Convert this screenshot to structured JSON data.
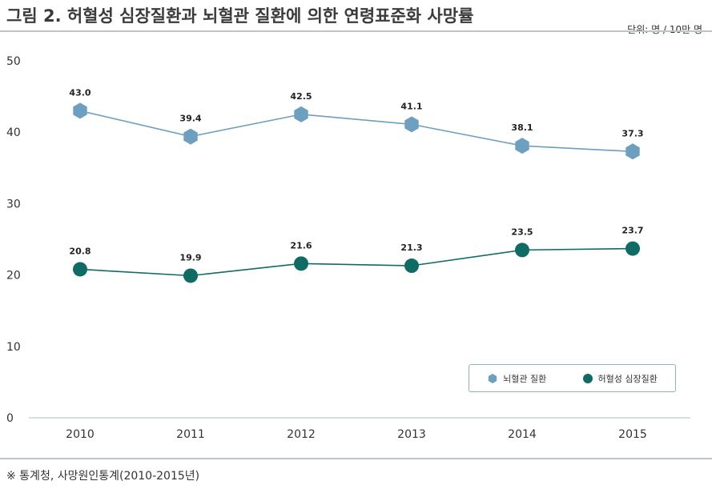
{
  "title": "그림 2. 허혈성 심장질환과 뇌혈관 질환에 의한 연령표준화 사망률",
  "unit": "단위: 명 / 10만 명",
  "source": "※ 통계청, 사망원인통계(2010-2015년)",
  "colors": {
    "cerebro": "#6d9fc0",
    "ischemic": "#0f6b64",
    "grid": "#c7d3da"
  },
  "chart_data": {
    "type": "line",
    "x": [
      "2010",
      "2011",
      "2012",
      "2013",
      "2014",
      "2015"
    ],
    "ylim": [
      0,
      50
    ],
    "yticks": [
      "0",
      "10",
      "20",
      "30",
      "40",
      "50"
    ],
    "grid": false,
    "legend": "bottom-right",
    "series": [
      {
        "name": "뇌혈관 질환",
        "marker": "hexagon",
        "values": [
          43.0,
          39.4,
          42.5,
          41.1,
          38.1,
          37.3
        ],
        "labels": [
          "43.0",
          "39.4",
          "42.5",
          "41.1",
          "38.1",
          "37.3"
        ]
      },
      {
        "name": "허혈성 심장질환",
        "marker": "circle",
        "values": [
          20.8,
          19.9,
          21.6,
          21.3,
          23.5,
          23.7
        ],
        "labels": [
          "20.8",
          "19.9",
          "21.6",
          "21.3",
          "23.5",
          "23.7"
        ]
      }
    ]
  }
}
